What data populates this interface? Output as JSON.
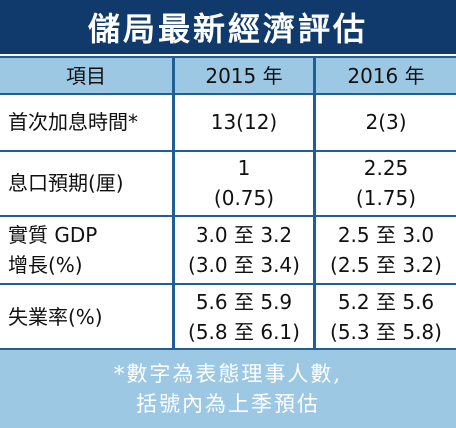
{
  "title": "儲局最新經濟評估",
  "headers": [
    "項目",
    "2015 年",
    "2016 年"
  ],
  "rows": [
    {
      "label": [
        "首次加息時間*"
      ],
      "y2015": [
        "13(12)"
      ],
      "y2016": [
        "2(3)"
      ]
    },
    {
      "label": [
        "息口預期(厘)"
      ],
      "y2015": [
        "1",
        "(0.75)"
      ],
      "y2016": [
        "2.25",
        "(1.75)"
      ]
    },
    {
      "label": [
        "實質 GDP",
        "增長(%)"
      ],
      "y2015": [
        "3.0 至 3.2",
        "(3.0 至 3.4)"
      ],
      "y2016": [
        "2.5 至 3.0",
        "(2.5 至 3.2)"
      ]
    },
    {
      "label": [
        "失業率(%)"
      ],
      "y2015": [
        "5.6 至 5.9",
        "(5.8 至 6.1)"
      ],
      "y2016": [
        "5.2 至 5.6",
        "(5.3 至 5.8)"
      ]
    }
  ],
  "footnote": [
    "*數字為表態理事人數,",
    "括號內為上季預估"
  ],
  "colors": {
    "title_bg": "#0f3a6b",
    "header_bg": "#9cc8e4",
    "grid": "#1f5f95"
  }
}
